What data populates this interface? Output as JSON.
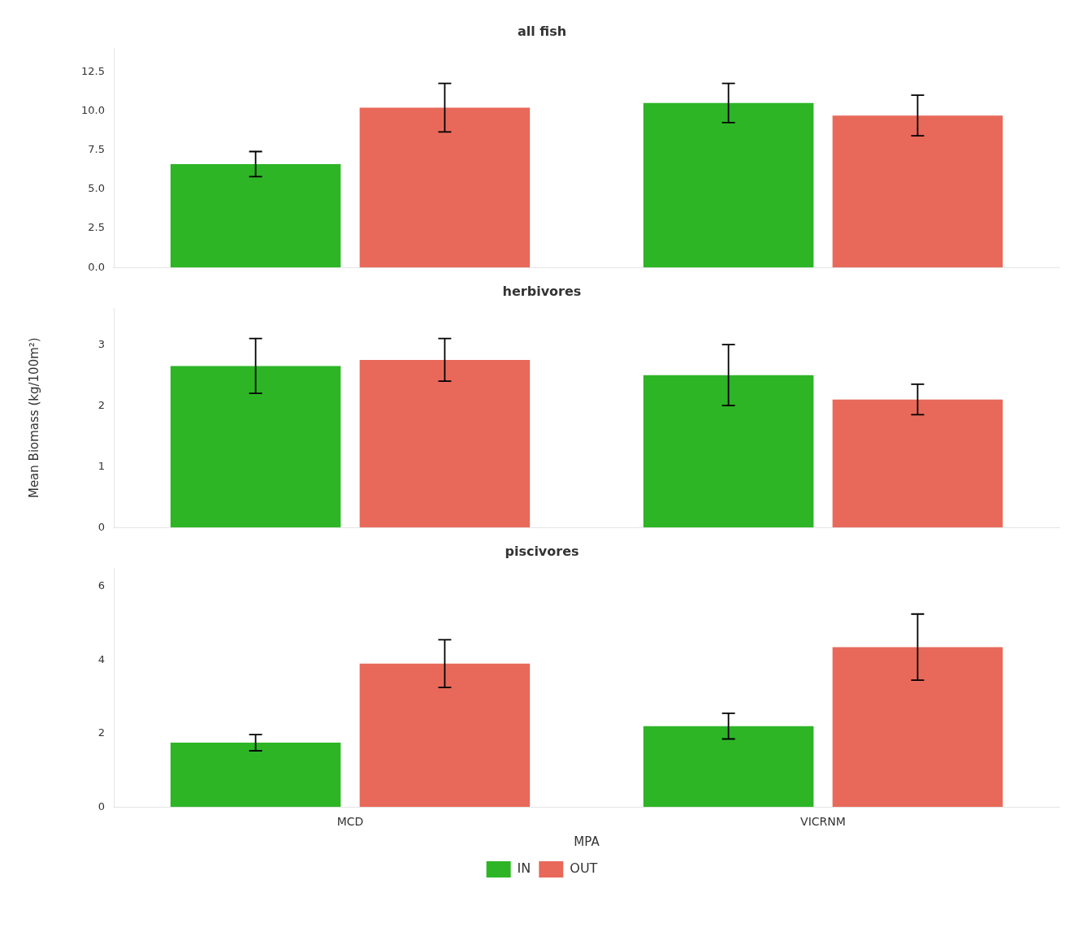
{
  "chart_data": [
    {
      "type": "bar",
      "title": "all fish",
      "categories": [
        "MCD",
        "VICRNM"
      ],
      "series": [
        {
          "name": "IN",
          "color": "#2db526",
          "values": [
            6.6,
            10.5
          ],
          "errors": [
            0.8,
            1.25
          ]
        },
        {
          "name": "OUT",
          "color": "#e8695a",
          "values": [
            10.2,
            9.7
          ],
          "errors": [
            1.55,
            1.3
          ]
        }
      ],
      "ylim": [
        0,
        14
      ],
      "yticks": [
        {
          "value": 0,
          "label": "0.0"
        },
        2.5,
        {
          "value": 5,
          "label": "5.0"
        },
        7.5,
        {
          "value": 10,
          "label": "10.0"
        },
        12.5
      ],
      "grid": false,
      "tick_labels": "y"
    },
    {
      "type": "bar",
      "title": "herbivores",
      "ylabel": "Mean Biomass (kg/100m²)",
      "categories": [
        "MCD",
        "VICRNM"
      ],
      "series": [
        {
          "name": "IN",
          "color": "#2db526",
          "values": [
            2.65,
            2.5
          ],
          "errors": [
            0.45,
            0.5
          ]
        },
        {
          "name": "OUT",
          "color": "#e8695a",
          "values": [
            2.75,
            2.1
          ],
          "errors": [
            0.35,
            0.25
          ]
        }
      ],
      "ylim": [
        0,
        3.6
      ],
      "yticks": [
        0,
        1,
        2,
        3
      ],
      "grid": false,
      "tick_labels": "y"
    },
    {
      "type": "bar",
      "title": "piscivores",
      "xlabel": "MPA",
      "categories": [
        "MCD",
        "VICRNM"
      ],
      "series": [
        {
          "name": "IN",
          "color": "#2db526",
          "values": [
            1.75,
            2.2
          ],
          "errors": [
            0.22,
            0.35
          ]
        },
        {
          "name": "OUT",
          "color": "#e8695a",
          "values": [
            3.9,
            4.35
          ],
          "errors": [
            0.65,
            0.9
          ]
        }
      ],
      "ylim": [
        0,
        6.5
      ],
      "yticks": [
        0,
        2,
        4,
        6
      ],
      "grid": false,
      "legend": "bottom"
    }
  ]
}
